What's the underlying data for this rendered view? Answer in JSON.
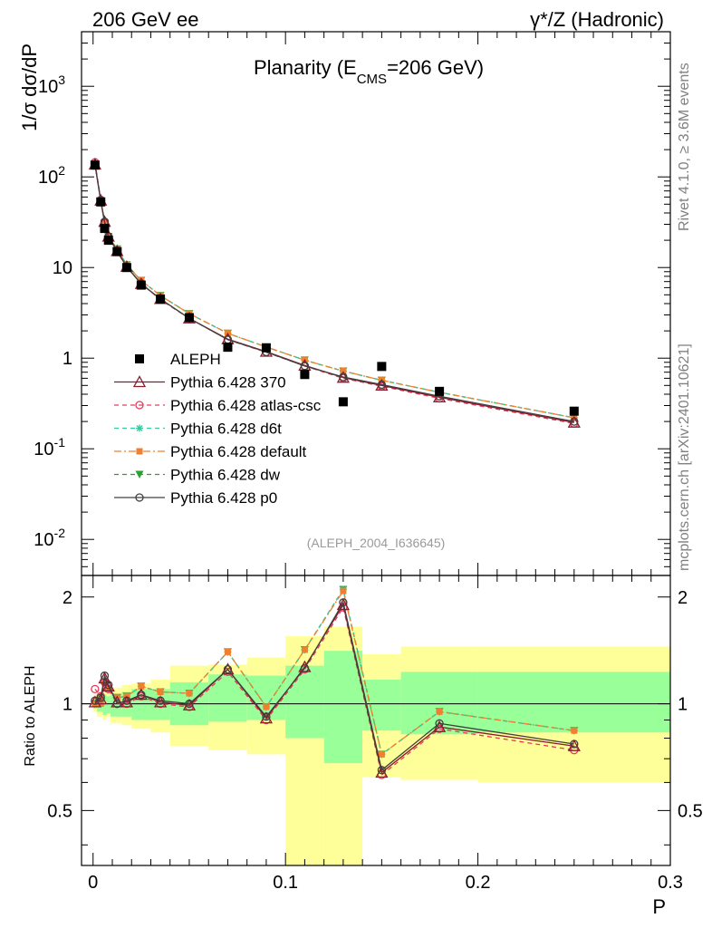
{
  "header": {
    "left": "206 GeV ee",
    "right": "γ*/Z (Hadronic)"
  },
  "side": {
    "rivet": "Rivet 4.1.0, ≥ 3.6M events",
    "mcplots": "mcplots.cern.ch [arXiv:2401.10621]"
  },
  "chart_data": {
    "type": "line",
    "title": "Planarity (E_CMS=206 GeV)",
    "title_parts": {
      "main": "Planarity (E",
      "sub": "CMS",
      "tail": "=206 GeV)"
    },
    "ylabel": "1/σ  dσ/dP",
    "ratio_ylabel": "Ratio to ALEPH",
    "xlabel": "P",
    "analysis_tag": "(ALEPH_2004_I636645)",
    "xlim": [
      -0.006,
      0.3
    ],
    "ylim": [
      0.004,
      4000
    ],
    "ratio_ylim": [
      0.35,
      2.3
    ],
    "yscale": "log",
    "x_ticks": [
      "0",
      "0.1",
      "0.2",
      "0.3"
    ],
    "y_ticks": [
      "10^-2",
      "10^-1",
      "1",
      "10",
      "10^2",
      "10^3"
    ],
    "ratio_ticks": [
      "0.5",
      "1",
      "2"
    ],
    "x": [
      0.001,
      0.004,
      0.006,
      0.008,
      0.0125,
      0.0175,
      0.025,
      0.035,
      0.05,
      0.07,
      0.09,
      0.11,
      0.13,
      0.15,
      0.18,
      0.25
    ],
    "data": {
      "name": "ALEPH",
      "values": [
        135,
        53,
        27,
        20,
        15,
        10,
        6.4,
        4.5,
        2.8,
        1.32,
        1.3,
        0.66,
        0.33,
        0.81,
        0.43,
        0.26
      ]
    },
    "bands": {
      "x_edges": [
        0.0,
        0.002,
        0.005,
        0.007,
        0.009,
        0.01,
        0.015,
        0.02,
        0.03,
        0.04,
        0.06,
        0.08,
        0.1,
        0.12,
        0.14,
        0.16,
        0.2,
        0.3
      ],
      "stat_lo": [
        0.97,
        0.95,
        0.93,
        0.94,
        0.92,
        0.92,
        0.92,
        0.9,
        0.9,
        0.87,
        0.89,
        0.9,
        0.8,
        0.68,
        0.84,
        0.82,
        0.83
      ],
      "stat_hi": [
        1.03,
        1.05,
        1.06,
        1.05,
        1.06,
        1.07,
        1.08,
        1.1,
        1.1,
        1.15,
        1.21,
        1.2,
        1.28,
        1.41,
        1.17,
        1.23,
        1.23
      ],
      "tot_lo": [
        0.95,
        0.92,
        0.9,
        0.92,
        0.88,
        0.88,
        0.87,
        0.85,
        0.83,
        0.76,
        0.74,
        0.72,
        0.35,
        0.35,
        0.62,
        0.61,
        0.6
      ],
      "tot_hi": [
        1.06,
        1.08,
        1.1,
        1.08,
        1.1,
        1.11,
        1.13,
        1.14,
        1.17,
        1.28,
        1.29,
        1.35,
        1.55,
        1.65,
        1.38,
        1.45,
        1.45
      ]
    },
    "series": [
      {
        "name": "Pythia 6.428 370",
        "color": "#8b1a2b",
        "dash": "",
        "marker": "triangle-open",
        "values": [
          137,
          55,
          32,
          22,
          15.2,
          10.2,
          6.6,
          4.5,
          2.75,
          1.62,
          1.18,
          0.83,
          0.61,
          0.5,
          0.37,
          0.195
        ],
        "ratios": [
          1.01,
          1.03,
          1.18,
          1.12,
          1.01,
          1.01,
          1.06,
          1.01,
          0.99,
          1.25,
          0.91,
          1.27,
          1.9,
          0.64,
          0.86,
          0.76
        ]
      },
      {
        "name": "Pythia 6.428 atlas-csc",
        "color": "#e63a5a",
        "dash": "5,4",
        "marker": "circle-open",
        "values": [
          145,
          56,
          31,
          22,
          15,
          10.1,
          6.7,
          4.4,
          2.75,
          1.6,
          1.16,
          0.82,
          0.6,
          0.49,
          0.36,
          0.19
        ],
        "ratios": [
          1.1,
          1.05,
          1.15,
          1.1,
          1.0,
          1.0,
          1.05,
          1.0,
          0.98,
          1.23,
          0.9,
          1.25,
          1.87,
          0.63,
          0.85,
          0.74
        ]
      },
      {
        "name": "Pythia 6.428 d6t",
        "color": "#36c9a0",
        "dash": "5,4",
        "marker": "star",
        "values": [
          138,
          54,
          31,
          22,
          16,
          10.7,
          7.2,
          4.9,
          3.1,
          1.88,
          1.33,
          0.95,
          0.72,
          0.57,
          0.42,
          0.22
        ],
        "ratios": [
          1.0,
          1.0,
          1.15,
          1.1,
          1.04,
          1.05,
          1.12,
          1.08,
          1.07,
          1.4,
          0.98,
          1.42,
          2.1,
          0.72,
          0.95,
          0.84
        ]
      },
      {
        "name": "Pythia 6.428 default",
        "color": "#f08030",
        "dash": "8,3,2,3",
        "marker": "square",
        "values": [
          138,
          54,
          31,
          22,
          16,
          10.7,
          7.2,
          4.9,
          3.1,
          1.88,
          1.33,
          0.95,
          0.72,
          0.57,
          0.42,
          0.22
        ],
        "ratios": [
          1.0,
          1.0,
          1.15,
          1.1,
          1.04,
          1.05,
          1.12,
          1.08,
          1.07,
          1.4,
          0.98,
          1.42,
          2.08,
          0.72,
          0.95,
          0.84
        ]
      },
      {
        "name": "Pythia 6.428 dw",
        "color": "#2ca02c",
        "dash": "5,4",
        "marker": "triangle-down",
        "values": [
          138,
          54,
          31,
          22,
          16,
          10.7,
          7.2,
          4.9,
          3.1,
          1.88,
          1.33,
          0.95,
          0.72,
          0.57,
          0.42,
          0.22
        ],
        "ratios": [
          1.0,
          1.0,
          1.15,
          1.1,
          1.04,
          1.05,
          1.12,
          1.08,
          1.07,
          1.4,
          0.98,
          1.42,
          2.1,
          0.72,
          0.95,
          0.84
        ]
      },
      {
        "name": "Pythia 6.428 p0",
        "color": "#404040",
        "dash": "",
        "marker": "circle-open",
        "values": [
          138,
          54,
          32,
          22,
          15.2,
          10.2,
          6.6,
          4.5,
          2.75,
          1.6,
          1.17,
          0.82,
          0.62,
          0.51,
          0.38,
          0.2
        ],
        "ratios": [
          1.02,
          1.04,
          1.2,
          1.13,
          1.0,
          1.02,
          1.06,
          1.02,
          1.0,
          1.25,
          0.92,
          1.26,
          1.93,
          0.65,
          0.88,
          0.77
        ]
      }
    ]
  }
}
